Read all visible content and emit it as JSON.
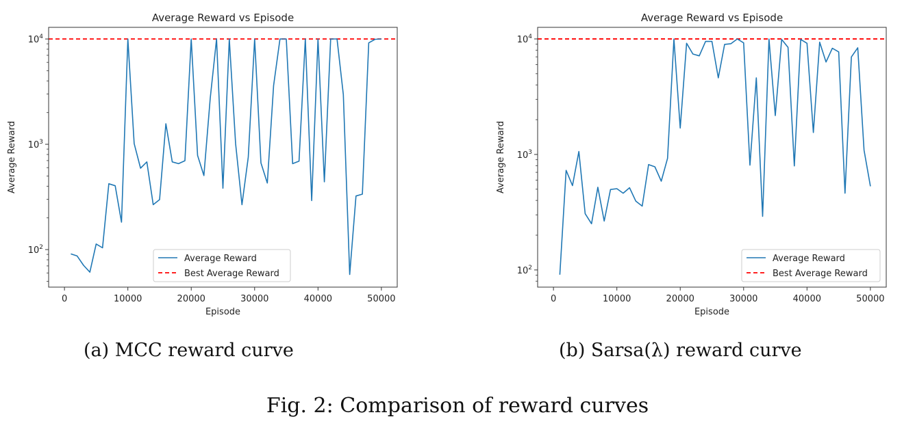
{
  "figure": {
    "caption": "Fig. 2: Comparison of reward curves",
    "subcaptions": [
      "(a) MCC reward curve",
      "(b) Sarsa(λ) reward curve"
    ]
  },
  "colors": {
    "series": "#1f77b4",
    "best": "#ff0000",
    "axis": "#333333",
    "legend_border": "#cccccc"
  },
  "chart_data": [
    {
      "type": "line",
      "title": "Average Reward vs Episode",
      "xlabel": "Episode",
      "ylabel": "Average Reward",
      "yscale": "log",
      "xlim": [
        -2500,
        52500
      ],
      "ylim": [
        44,
        12900
      ],
      "xticks": [
        0,
        10000,
        20000,
        30000,
        40000,
        50000
      ],
      "xtick_labels": [
        "0",
        "10000",
        "20000",
        "30000",
        "40000",
        "50000"
      ],
      "yticks": [
        100,
        1000,
        10000
      ],
      "ytick_labels": [
        {
          "base": "10",
          "exp": "2"
        },
        {
          "base": "10",
          "exp": "3"
        },
        {
          "base": "10",
          "exp": "4"
        }
      ],
      "grid": false,
      "legend": {
        "placement": "lower-center",
        "entries": [
          "Average Reward",
          "Best Average Reward"
        ]
      },
      "best_line": 10000,
      "x": [
        1000,
        2000,
        3000,
        4000,
        5000,
        6000,
        7000,
        8000,
        9000,
        10000,
        11000,
        12000,
        13000,
        14000,
        15000,
        16000,
        17000,
        18000,
        19000,
        20000,
        21000,
        22000,
        23000,
        24000,
        25000,
        26000,
        27000,
        28000,
        29000,
        30000,
        31000,
        32000,
        33000,
        34000,
        35000,
        36000,
        37000,
        38000,
        39000,
        40000,
        41000,
        42000,
        43000,
        44000,
        45000,
        46000,
        47000,
        48000,
        49000,
        50000
      ],
      "series": [
        {
          "name": "Average Reward",
          "values": [
            91,
            87,
            71,
            61,
            113,
            104,
            422,
            404,
            182,
            10000,
            1015,
            593,
            681,
            267,
            298,
            1567,
            681,
            655,
            698,
            10000,
            783,
            505,
            2755,
            10000,
            383,
            10000,
            1015,
            267,
            755,
            10000,
            665,
            429,
            3614,
            10000,
            10000,
            655,
            691,
            10000,
            292,
            10000,
            440,
            10000,
            10000,
            2965,
            58,
            323,
            336,
            9190,
            9930,
            10000
          ]
        }
      ]
    },
    {
      "type": "line",
      "title": "Average Reward vs Episode",
      "xlabel": "Episode",
      "ylabel": "Average Reward",
      "yscale": "log",
      "xlim": [
        -2500,
        52500
      ],
      "ylim": [
        71,
        12600
      ],
      "xticks": [
        0,
        10000,
        20000,
        30000,
        40000,
        50000
      ],
      "xtick_labels": [
        "0",
        "10000",
        "20000",
        "30000",
        "40000",
        "50000"
      ],
      "yticks": [
        100,
        1000,
        10000
      ],
      "ytick_labels": [
        {
          "base": "10",
          "exp": "2"
        },
        {
          "base": "10",
          "exp": "3"
        },
        {
          "base": "10",
          "exp": "4"
        }
      ],
      "grid": false,
      "legend": {
        "placement": "lower-right",
        "entries": [
          "Average Reward",
          "Best Average Reward"
        ]
      },
      "best_line": 10000,
      "x": [
        1000,
        2000,
        3000,
        4000,
        5000,
        6000,
        7000,
        8000,
        9000,
        10000,
        11000,
        12000,
        13000,
        14000,
        15000,
        16000,
        17000,
        18000,
        19000,
        20000,
        21000,
        22000,
        23000,
        24000,
        25000,
        26000,
        27000,
        28000,
        29000,
        30000,
        31000,
        32000,
        33000,
        34000,
        35000,
        36000,
        37000,
        38000,
        39000,
        40000,
        41000,
        42000,
        43000,
        44000,
        45000,
        46000,
        47000,
        48000,
        49000,
        50000
      ],
      "series": [
        {
          "name": "Average Reward",
          "values": [
            91,
            728,
            537,
            1060,
            307,
            251,
            520,
            265,
            497,
            505,
            462,
            515,
            394,
            357,
            818,
            782,
            587,
            925,
            10000,
            1692,
            9170,
            7410,
            7140,
            9510,
            9510,
            4600,
            8970,
            9100,
            10000,
            9250,
            807,
            4600,
            291,
            10000,
            2170,
            9900,
            8460,
            796,
            9900,
            9170,
            1550,
            9380,
            6310,
            8300,
            7720,
            462,
            6980,
            8380,
            1090,
            530
          ]
        }
      ]
    }
  ]
}
